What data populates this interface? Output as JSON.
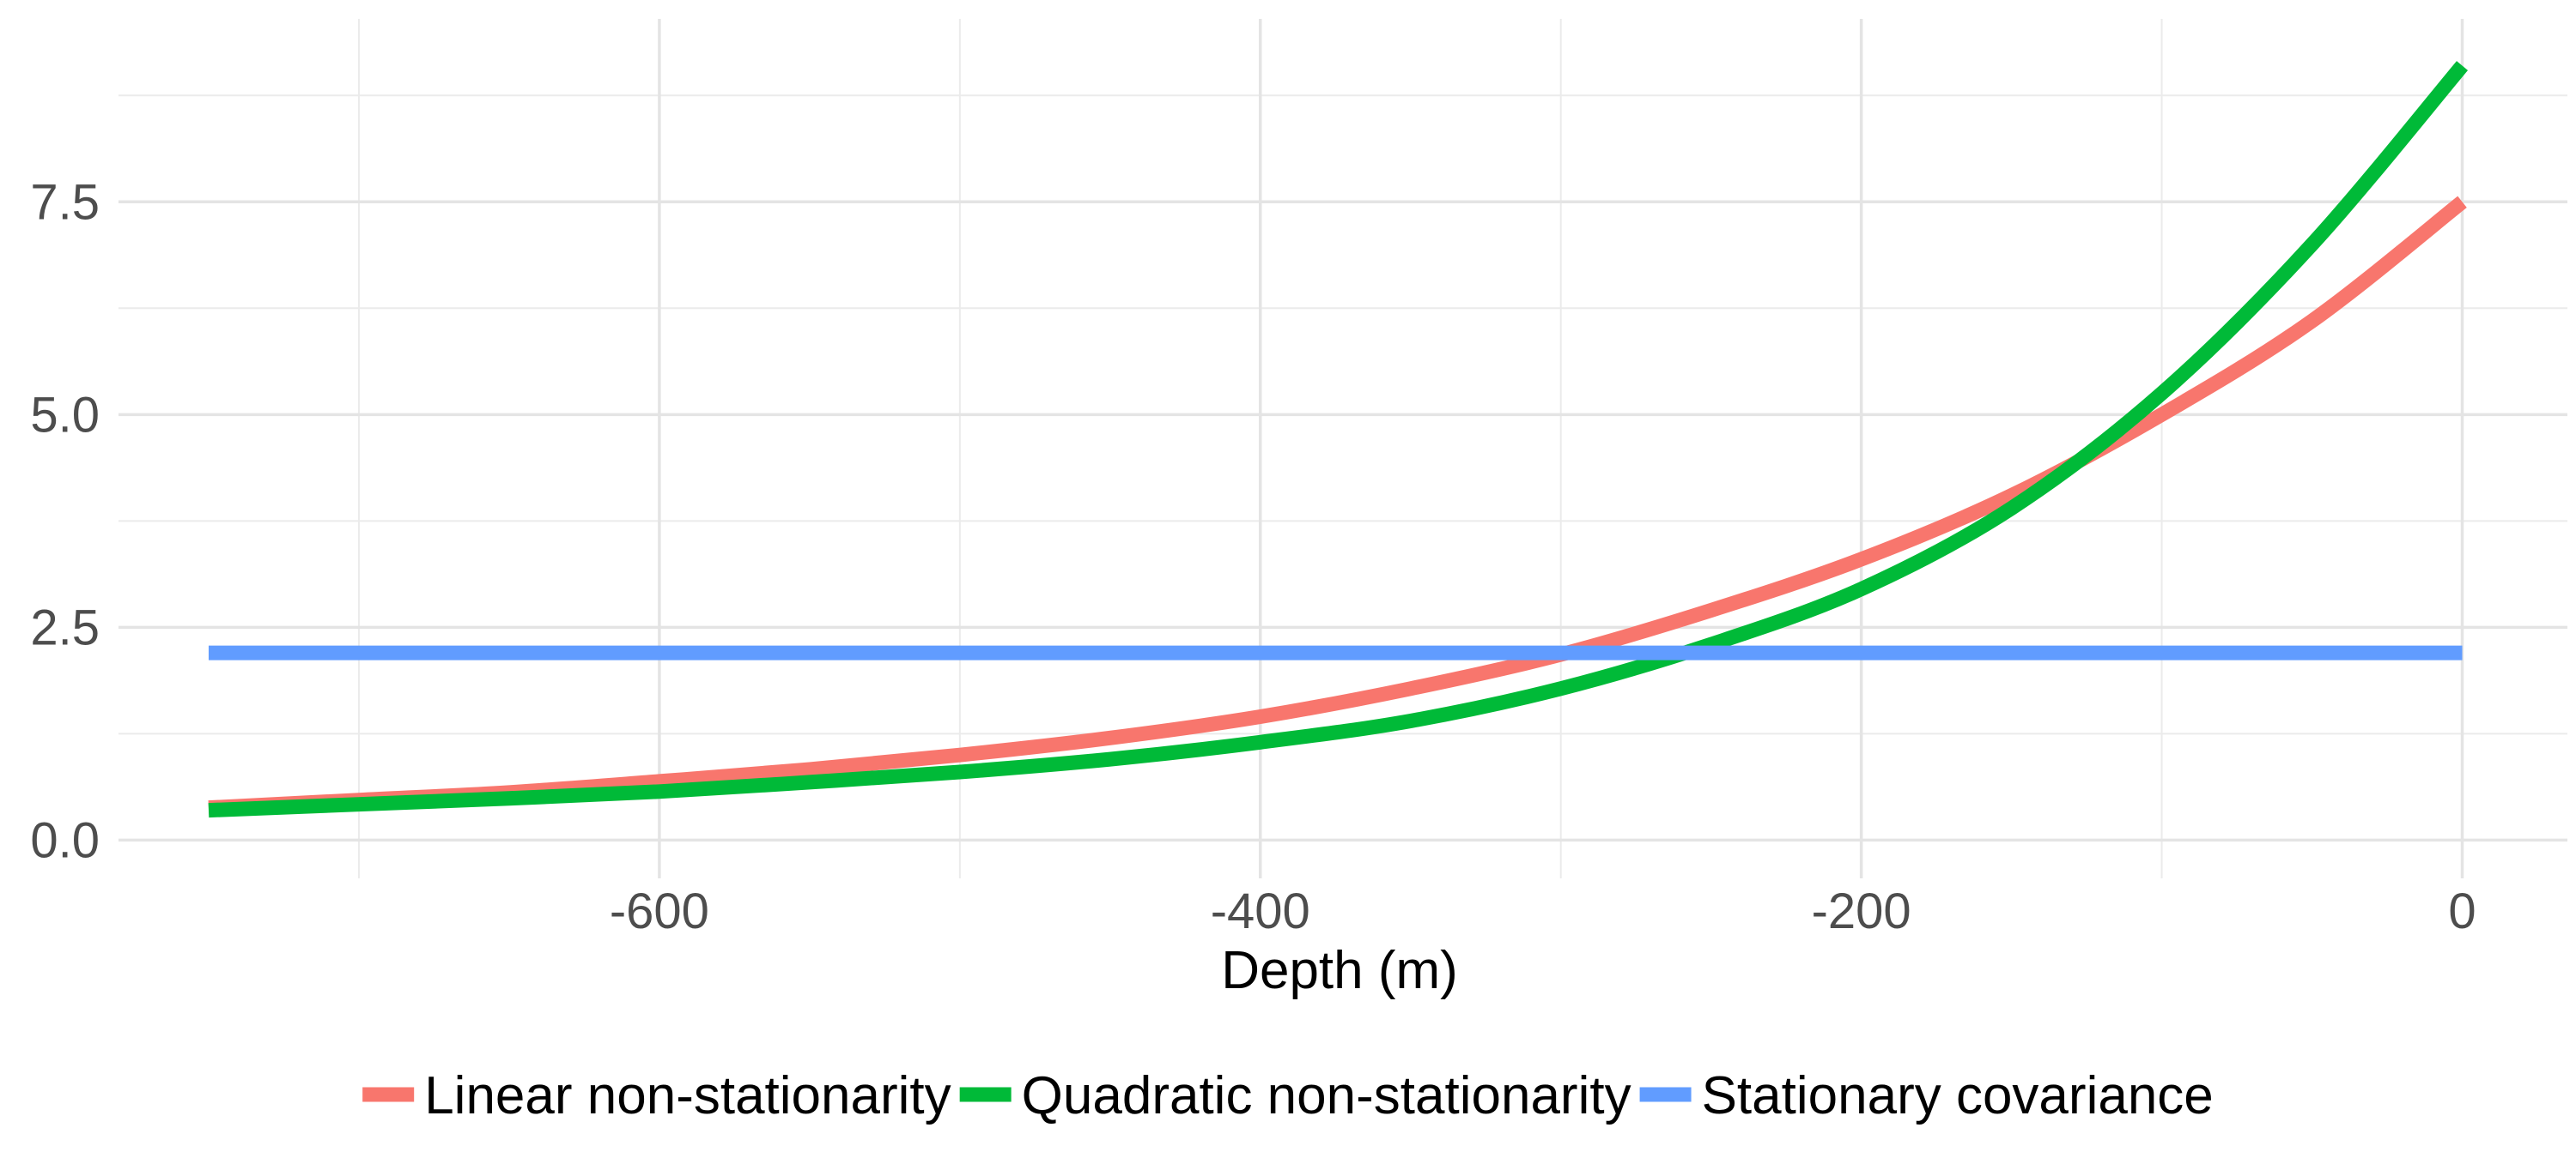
{
  "chart_data": {
    "type": "line",
    "title": "",
    "xlabel": "Depth (m)",
    "ylabel": "",
    "xlim": [
      -780,
      35
    ],
    "ylim": [
      -0.45,
      9.65
    ],
    "x_ticks": [
      -600,
      -400,
      -200,
      0
    ],
    "x_tick_labels": [
      "-600",
      "-400",
      "-200",
      "0"
    ],
    "x_minor_ticks": [
      -700,
      -500,
      -300,
      -100
    ],
    "y_ticks": [
      0,
      2.5,
      5,
      7.5
    ],
    "y_tick_labels": [
      "0.0",
      "2.5",
      "5.0",
      "7.5"
    ],
    "y_minor_ticks": [
      1.25,
      3.75,
      6.25,
      8.75
    ],
    "grid": true,
    "legend_position": "bottom",
    "series": [
      {
        "name": "Linear non-stationarity",
        "color": "#F8766D",
        "x": [
          -750,
          -700,
          -650,
          -600,
          -550,
          -500,
          -450,
          -400,
          -350,
          -300,
          -250,
          -200,
          -150,
          -100,
          -50,
          0
        ],
        "y": [
          0.38,
          0.47,
          0.56,
          0.69,
          0.83,
          1.0,
          1.2,
          1.45,
          1.78,
          2.18,
          2.7,
          3.3,
          4.05,
          5.0,
          6.1,
          7.5
        ]
      },
      {
        "name": "Quadratic non-stationarity",
        "color": "#00BA38",
        "x": [
          -750,
          -700,
          -650,
          -600,
          -550,
          -500,
          -450,
          -400,
          -350,
          -300,
          -250,
          -200,
          -150,
          -100,
          -50,
          0
        ],
        "y": [
          0.35,
          0.42,
          0.49,
          0.57,
          0.68,
          0.8,
          0.95,
          1.15,
          1.4,
          1.78,
          2.3,
          2.95,
          3.9,
          5.25,
          7.0,
          9.1
        ]
      },
      {
        "name": "Stationary covariance",
        "color": "#619CFF",
        "x": [
          -750,
          0
        ],
        "y": [
          2.2,
          2.2
        ]
      }
    ]
  }
}
